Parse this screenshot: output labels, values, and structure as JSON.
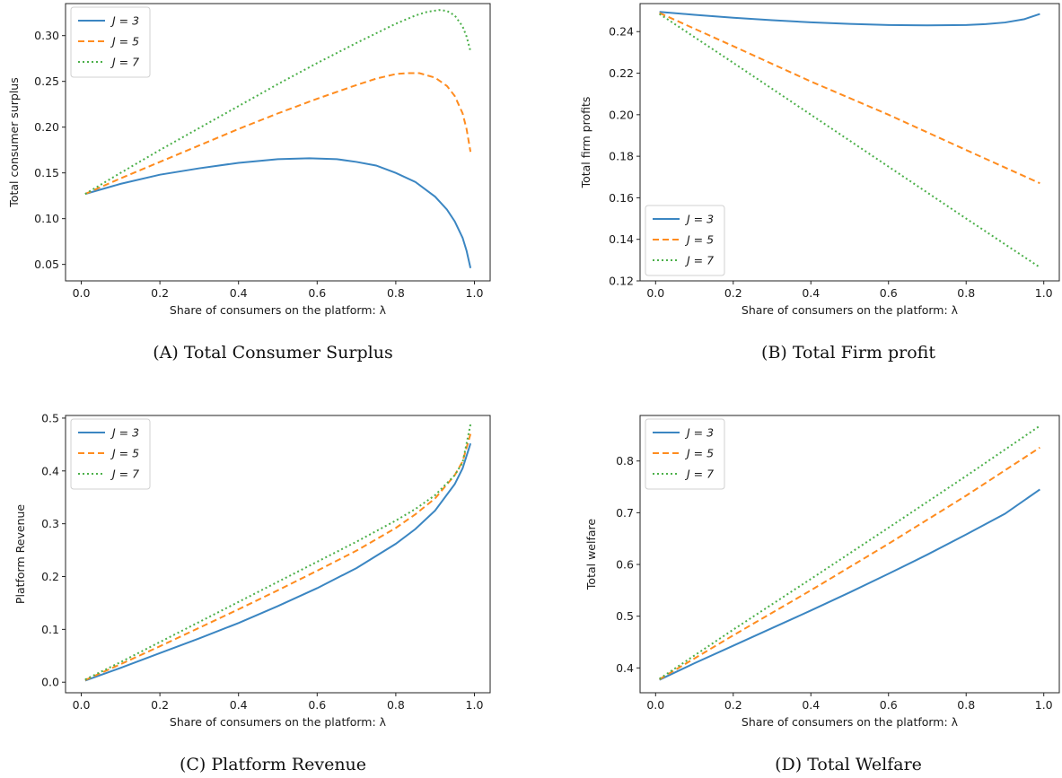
{
  "figure": {
    "panels": [
      {
        "id": "a",
        "caption": "(A) Total Consumer Surplus"
      },
      {
        "id": "b",
        "caption": "(B) Total Firm profit"
      },
      {
        "id": "c",
        "caption": "(C) Platform Revenue"
      },
      {
        "id": "d",
        "caption": "(D) Total Welfare"
      }
    ]
  },
  "colors": {
    "J3": "#3b86c2",
    "J5": "#ff8c1f",
    "J7": "#4cb04a",
    "axes": "#222222"
  },
  "chart_data": [
    {
      "type": "line",
      "title": "",
      "xlabel": "Share of consumers on the platform: λ",
      "ylabel": "Total consumer surplus",
      "xlim": [
        -0.04,
        1.04
      ],
      "ylim": [
        0.032,
        0.335
      ],
      "xticks": [
        0.0,
        0.2,
        0.4,
        0.6,
        0.8,
        1.0
      ],
      "xtick_labels": [
        "0.0",
        "0.2",
        "0.4",
        "0.6",
        "0.8",
        "1.0"
      ],
      "yticks": [
        0.05,
        0.1,
        0.15,
        0.2,
        0.25,
        0.3
      ],
      "ytick_labels": [
        "0.05",
        "0.10",
        "0.15",
        "0.20",
        "0.25",
        "0.30"
      ],
      "legend": "top-left",
      "grid": false,
      "series": [
        {
          "name": "J = 3",
          "key": "J3",
          "style": "solid",
          "x": [
            0.01,
            0.1,
            0.2,
            0.3,
            0.4,
            0.5,
            0.58,
            0.65,
            0.7,
            0.75,
            0.8,
            0.85,
            0.9,
            0.93,
            0.95,
            0.97,
            0.98,
            0.99
          ],
          "y": [
            0.127,
            0.138,
            0.148,
            0.155,
            0.161,
            0.165,
            0.166,
            0.165,
            0.162,
            0.158,
            0.15,
            0.14,
            0.124,
            0.11,
            0.097,
            0.079,
            0.065,
            0.046
          ]
        },
        {
          "name": "J = 5",
          "key": "J5",
          "style": "dashed",
          "x": [
            0.01,
            0.1,
            0.2,
            0.3,
            0.4,
            0.5,
            0.6,
            0.7,
            0.75,
            0.8,
            0.83,
            0.86,
            0.9,
            0.93,
            0.95,
            0.97,
            0.98,
            0.99
          ],
          "y": [
            0.127,
            0.144,
            0.162,
            0.18,
            0.198,
            0.215,
            0.231,
            0.246,
            0.253,
            0.258,
            0.259,
            0.259,
            0.254,
            0.245,
            0.234,
            0.215,
            0.198,
            0.173
          ]
        },
        {
          "name": "J = 7",
          "key": "J7",
          "style": "dotted",
          "x": [
            0.01,
            0.1,
            0.2,
            0.3,
            0.4,
            0.5,
            0.6,
            0.7,
            0.8,
            0.85,
            0.88,
            0.91,
            0.93,
            0.95,
            0.97,
            0.98,
            0.99
          ],
          "y": [
            0.127,
            0.15,
            0.175,
            0.199,
            0.223,
            0.247,
            0.27,
            0.292,
            0.313,
            0.322,
            0.326,
            0.328,
            0.327,
            0.322,
            0.31,
            0.299,
            0.283
          ]
        }
      ]
    },
    {
      "type": "line",
      "title": "",
      "xlabel": "Share of consumers on the platform: λ",
      "ylabel": "Total firm profits",
      "xlim": [
        -0.04,
        1.04
      ],
      "ylim": [
        0.12,
        0.2535
      ],
      "xticks": [
        0.0,
        0.2,
        0.4,
        0.6,
        0.8,
        1.0
      ],
      "xtick_labels": [
        "0.0",
        "0.2",
        "0.4",
        "0.6",
        "0.8",
        "1.0"
      ],
      "yticks": [
        0.12,
        0.14,
        0.16,
        0.18,
        0.2,
        0.22,
        0.24
      ],
      "ytick_labels": [
        "0.12",
        "0.14",
        "0.16",
        "0.18",
        "0.20",
        "0.22",
        "0.24"
      ],
      "legend": "lower-left",
      "grid": false,
      "series": [
        {
          "name": "J = 3",
          "key": "J3",
          "style": "solid",
          "x": [
            0.01,
            0.1,
            0.2,
            0.3,
            0.4,
            0.5,
            0.6,
            0.7,
            0.8,
            0.85,
            0.9,
            0.95,
            0.99
          ],
          "y": [
            0.2495,
            0.2481,
            0.2467,
            0.2455,
            0.2445,
            0.2437,
            0.2432,
            0.243,
            0.2432,
            0.2436,
            0.2444,
            0.246,
            0.2485
          ]
        },
        {
          "name": "J = 5",
          "key": "J5",
          "style": "dashed",
          "x": [
            0.01,
            0.2,
            0.4,
            0.6,
            0.8,
            0.99
          ],
          "y": [
            0.249,
            0.233,
            0.216,
            0.2,
            0.183,
            0.167
          ]
        },
        {
          "name": "J = 7",
          "key": "J7",
          "style": "dotted",
          "x": [
            0.01,
            0.2,
            0.4,
            0.6,
            0.8,
            0.99
          ],
          "y": [
            0.2485,
            0.225,
            0.2,
            0.175,
            0.15,
            0.1265
          ]
        }
      ]
    },
    {
      "type": "line",
      "title": "",
      "xlabel": "Share of consumers on the platform: λ",
      "ylabel": "Platform Revenue",
      "xlim": [
        -0.04,
        1.04
      ],
      "ylim": [
        -0.02,
        0.505
      ],
      "xticks": [
        0.0,
        0.2,
        0.4,
        0.6,
        0.8,
        1.0
      ],
      "xtick_labels": [
        "0.0",
        "0.2",
        "0.4",
        "0.6",
        "0.8",
        "1.0"
      ],
      "yticks": [
        0.0,
        0.1,
        0.2,
        0.3,
        0.4,
        0.5
      ],
      "ytick_labels": [
        "0.0",
        "0.1",
        "0.2",
        "0.3",
        "0.4",
        "0.5"
      ],
      "legend": "top-left",
      "grid": false,
      "series": [
        {
          "name": "J = 3",
          "key": "J3",
          "style": "solid",
          "x": [
            0.01,
            0.1,
            0.2,
            0.3,
            0.4,
            0.5,
            0.6,
            0.7,
            0.8,
            0.85,
            0.9,
            0.95,
            0.97,
            0.99
          ],
          "y": [
            0.003,
            0.027,
            0.055,
            0.083,
            0.112,
            0.144,
            0.178,
            0.216,
            0.262,
            0.29,
            0.325,
            0.375,
            0.405,
            0.452
          ]
        },
        {
          "name": "J = 5",
          "key": "J5",
          "style": "dashed",
          "x": [
            0.01,
            0.1,
            0.2,
            0.3,
            0.4,
            0.5,
            0.6,
            0.7,
            0.8,
            0.85,
            0.9,
            0.95,
            0.97,
            0.99
          ],
          "y": [
            0.004,
            0.034,
            0.068,
            0.103,
            0.138,
            0.174,
            0.211,
            0.249,
            0.292,
            0.318,
            0.348,
            0.392,
            0.418,
            0.47
          ]
        },
        {
          "name": "J = 7",
          "key": "J7",
          "style": "dotted",
          "x": [
            0.01,
            0.1,
            0.2,
            0.3,
            0.4,
            0.5,
            0.6,
            0.7,
            0.8,
            0.85,
            0.9,
            0.95,
            0.97,
            0.99
          ],
          "y": [
            0.005,
            0.038,
            0.076,
            0.114,
            0.152,
            0.19,
            0.228,
            0.266,
            0.306,
            0.328,
            0.354,
            0.392,
            0.416,
            0.488
          ]
        }
      ]
    },
    {
      "type": "line",
      "title": "",
      "xlabel": "Share of consumers on the platform: λ",
      "ylabel": "Total welfare",
      "xlim": [
        -0.04,
        1.04
      ],
      "ylim": [
        0.352,
        0.888
      ],
      "xticks": [
        0.0,
        0.2,
        0.4,
        0.6,
        0.8,
        1.0
      ],
      "xtick_labels": [
        "0.0",
        "0.2",
        "0.4",
        "0.6",
        "0.8",
        "1.0"
      ],
      "yticks": [
        0.4,
        0.5,
        0.6,
        0.7,
        0.8
      ],
      "ytick_labels": [
        "0.4",
        "0.5",
        "0.6",
        "0.7",
        "0.8"
      ],
      "legend": "top-left",
      "grid": false,
      "series": [
        {
          "name": "J = 3",
          "key": "J3",
          "style": "solid",
          "x": [
            0.01,
            0.1,
            0.2,
            0.3,
            0.4,
            0.5,
            0.6,
            0.7,
            0.8,
            0.9,
            0.99
          ],
          "y": [
            0.377,
            0.409,
            0.443,
            0.477,
            0.511,
            0.546,
            0.582,
            0.619,
            0.658,
            0.698,
            0.745
          ]
        },
        {
          "name": "J = 5",
          "key": "J5",
          "style": "dashed",
          "x": [
            0.01,
            0.2,
            0.4,
            0.6,
            0.8,
            0.99
          ],
          "y": [
            0.378,
            0.463,
            0.55,
            0.64,
            0.733,
            0.826
          ]
        },
        {
          "name": "J = 7",
          "key": "J7",
          "style": "dotted",
          "x": [
            0.01,
            0.2,
            0.4,
            0.6,
            0.8,
            0.99
          ],
          "y": [
            0.379,
            0.474,
            0.572,
            0.671,
            0.771,
            0.868
          ]
        }
      ]
    }
  ]
}
